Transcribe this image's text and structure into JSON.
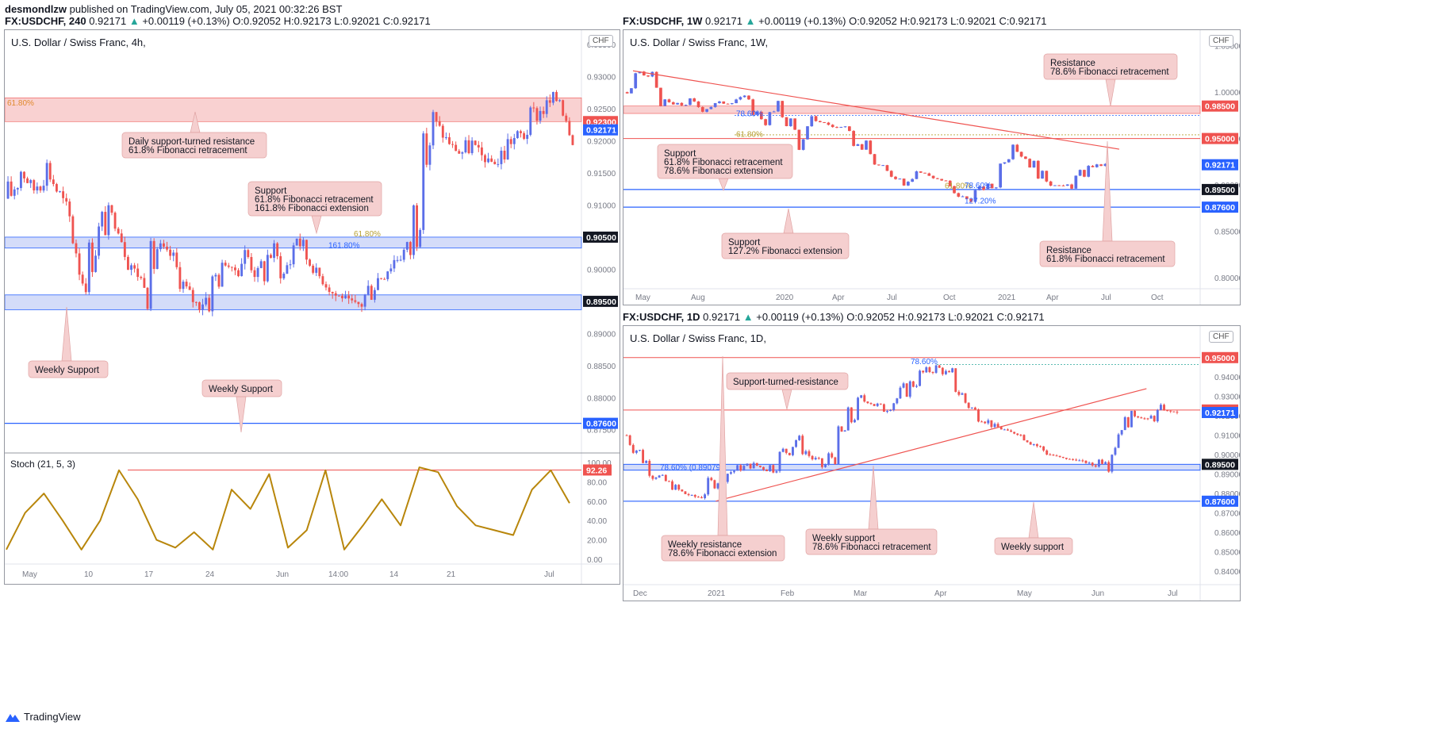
{
  "header": {
    "author": "desmondlzw",
    "published_text": "published on TradingView.com, July 05, 2021 00:32:26 BST"
  },
  "footer": {
    "brand": "TradingView",
    "logo_icon": "tradingview-logo-icon"
  },
  "colors": {
    "up": "#5b6ee8",
    "down": "#ef5350",
    "red_line": "#ef5350",
    "blue_line": "#2962ff",
    "red_zone": "#f8c5c5",
    "blue_zone": "#c9d3f7",
    "stoch": "#b8860b",
    "callout": "#f5cfcf"
  },
  "panels": [
    {
      "id": "h4",
      "info": {
        "symbol": "FX:USDCHF, 240",
        "last": "0.92171",
        "change": "+0.00119 (+0.13%)",
        "open": "O:0.92052",
        "high": "H:0.92173",
        "low": "L:0.92021",
        "close": "C:0.92171"
      },
      "title": "U.S. Dollar / Swiss Franc, 4h,",
      "currency": "CHF",
      "indicator": "Stoch (21, 5, 3)",
      "annotations": [
        {
          "id": "daily-support-turned-resistance",
          "lines": [
            "Daily support-turned resistance",
            "61.8% Fibonacci retracement"
          ]
        },
        {
          "id": "support-61-161",
          "lines": [
            "Support",
            "61.8% Fibonacci retracement",
            "161.8% Fibonacci extension"
          ]
        },
        {
          "id": "weekly-support-1",
          "lines": [
            "Weekly Support"
          ]
        },
        {
          "id": "weekly-support-2",
          "lines": [
            "Weekly Support"
          ]
        }
      ],
      "fib_labels": [
        "61.80%",
        "61.80%",
        "161.80%"
      ],
      "price_ticks": [
        "0.93500",
        "0.93000",
        "0.92500",
        "0.92000",
        "0.91500",
        "0.91000",
        "0.90500",
        "0.90000",
        "0.89500",
        "0.89000",
        "0.88500",
        "0.88000",
        "0.87500"
      ],
      "price_tags": [
        {
          "text": "0.92300",
          "color": "#ef5350"
        },
        {
          "text": "0.92171",
          "color": "#2962ff"
        },
        {
          "text": "0.90500",
          "color": "#131722"
        },
        {
          "text": "0.89500",
          "color": "#131722"
        },
        {
          "text": "0.87600",
          "color": "#2962ff"
        }
      ],
      "stoch_ticks": [
        "100.00",
        "80.00",
        "60.00",
        "40.00",
        "20.00",
        "0.00"
      ],
      "stoch_tag": "92.26",
      "time_ticks": [
        "May",
        "10",
        "17",
        "24",
        "Jun",
        "14:00",
        "14",
        "21",
        "Jul"
      ]
    },
    {
      "id": "w1",
      "info": {
        "symbol": "FX:USDCHF, 1W",
        "last": "0.92171",
        "change": "+0.00119 (+0.13%)",
        "open": "O:0.92052",
        "high": "H:0.92173",
        "low": "L:0.92021",
        "close": "C:0.92171"
      },
      "title": "U.S. Dollar / Swiss Franc, 1W,",
      "currency": "CHF",
      "annotations": [
        {
          "id": "resistance-786",
          "lines": [
            "Resistance",
            "78.6% Fibonacci retracement"
          ]
        },
        {
          "id": "support-618-786",
          "lines": [
            "Support",
            "61.8% Fibonacci retracement",
            "78.6% Fibonacci extension"
          ]
        },
        {
          "id": "support-1272",
          "lines": [
            "Support",
            "127.2% Fibonacci extension"
          ]
        },
        {
          "id": "resistance-618",
          "lines": [
            "Resistance",
            "61.8% Fibonacci retracement"
          ]
        }
      ],
      "fib_labels": [
        "78.60%",
        "61.80%",
        "61.80%",
        "78.60%",
        "127.20%"
      ],
      "price_ticks": [
        "1.05000",
        "1.00000",
        "0.95000",
        "0.90000",
        "0.85000",
        "0.80000"
      ],
      "price_tags": [
        {
          "text": "0.98500",
          "color": "#ef5350"
        },
        {
          "text": "0.95000",
          "color": "#ef5350"
        },
        {
          "text": "0.92171",
          "color": "#2962ff"
        },
        {
          "text": "0.89500",
          "color": "#131722"
        },
        {
          "text": "0.87600",
          "color": "#2962ff"
        }
      ],
      "time_ticks": [
        "May",
        "Aug",
        "2020",
        "Apr",
        "Jul",
        "Oct",
        "2021",
        "Apr",
        "Jul",
        "Oct"
      ]
    },
    {
      "id": "d1",
      "info": {
        "symbol": "FX:USDCHF, 1D",
        "last": "0.92171",
        "change": "+0.00119 (+0.13%)",
        "open": "O:0.92052",
        "high": "H:0.92173",
        "low": "L:0.92021",
        "close": "C:0.92171"
      },
      "title": "U.S. Dollar / Swiss Franc, 1D,",
      "currency": "CHF",
      "annotations": [
        {
          "id": "support-turned-resistance",
          "lines": [
            "Support-turned-resistance"
          ]
        },
        {
          "id": "weekly-resistance",
          "lines": [
            "Weekly resistance",
            "78.6% Fibonacci extension"
          ]
        },
        {
          "id": "weekly-support-786",
          "lines": [
            "Weekly support",
            "78.6% Fibonacci retracement"
          ]
        },
        {
          "id": "weekly-support",
          "lines": [
            "Weekly support"
          ]
        }
      ],
      "fib_labels": [
        "78.60%",
        "78.60% (0.89079)"
      ],
      "price_ticks": [
        "0.94000",
        "0.93000",
        "0.92000",
        "0.91000",
        "0.90000",
        "0.89000",
        "0.88000",
        "0.87000",
        "0.86000",
        "0.85000",
        "0.84000"
      ],
      "price_tags": [
        {
          "text": "0.95000",
          "color": "#ef5350"
        },
        {
          "text": "0.92300",
          "color": "#ef5350"
        },
        {
          "text": "0.92171",
          "color": "#2962ff"
        },
        {
          "text": "0.89500",
          "color": "#131722"
        },
        {
          "text": "0.87600",
          "color": "#2962ff"
        }
      ],
      "time_ticks": [
        "Dec",
        "2021",
        "Feb",
        "Mar",
        "Apr",
        "May",
        "Jun",
        "Jul"
      ]
    }
  ],
  "chart_data": [
    {
      "type": "candlestick",
      "panel": "h4",
      "y_range": [
        0.872,
        0.9365
      ],
      "key_levels": {
        "resistance_zone": [
          0.923,
          0.9267
        ],
        "support_zone_1": [
          0.9033,
          0.905
        ],
        "support_zone_2": [
          0.8937,
          0.896
        ],
        "weekly_support": 0.876
      },
      "path": [
        0.911,
        0.9155,
        0.9125,
        0.9165,
        0.912,
        0.9075,
        0.899,
        0.9045,
        0.909,
        0.906,
        0.9,
        0.8975,
        0.904,
        0.902,
        0.8975,
        0.8945,
        0.896,
        0.901,
        0.9,
        0.9025,
        0.8985,
        0.9035,
        0.899,
        0.9055,
        0.901,
        0.8985,
        0.896,
        0.8955,
        0.8945,
        0.8975,
        0.9,
        0.902,
        0.9035,
        0.916,
        0.923,
        0.92,
        0.918,
        0.9195,
        0.917,
        0.9165,
        0.92,
        0.921,
        0.924,
        0.9255,
        0.927,
        0.9217
      ],
      "stoch": [
        10,
        48,
        68,
        40,
        10,
        40,
        92,
        62,
        20,
        12,
        28,
        10,
        72,
        52,
        88,
        12,
        30,
        92,
        10,
        35,
        62,
        35,
        95,
        90,
        55,
        35,
        30,
        25,
        72,
        92,
        58
      ],
      "stoch_level": 92.26
    },
    {
      "type": "candlestick",
      "panel": "w1",
      "y_range": [
        0.788,
        1.06
      ],
      "key_levels": {
        "resistance_zone": [
          0.977,
          0.985
        ],
        "resistance": 0.95,
        "support": 0.895,
        "support_2": 0.876
      },
      "trendline": [
        [
          0,
          1.023
        ],
        [
          1.0,
          0.9385
        ]
      ],
      "path": [
        1.0,
        1.02,
        1.015,
        0.99,
        0.985,
        0.99,
        0.982,
        0.987,
        0.99,
        0.995,
        0.98,
        0.97,
        0.982,
        0.965,
        0.94,
        0.97,
        0.965,
        0.96,
        0.945,
        0.938,
        0.92,
        0.91,
        0.905,
        0.915,
        0.91,
        0.905,
        0.89,
        0.885,
        0.895,
        0.9,
        0.93,
        0.94,
        0.925,
        0.91,
        0.9,
        0.898,
        0.91,
        0.92,
        0.9217
      ]
    },
    {
      "type": "candlestick",
      "panel": "d1",
      "y_range": [
        0.833,
        0.954
      ],
      "key_levels": {
        "resistance": 0.95,
        "support_turned_resistance": 0.923,
        "support_zone": [
          0.892,
          0.895
        ],
        "weekly_support": 0.876
      },
      "trendline": [
        [
          0.1598,
          0.876
        ],
        [
          0.9069,
          0.934
        ]
      ],
      "path": [
        0.91,
        0.9,
        0.89,
        0.885,
        0.88,
        0.878,
        0.885,
        0.89,
        0.893,
        0.895,
        0.892,
        0.9,
        0.908,
        0.899,
        0.893,
        0.905,
        0.92,
        0.93,
        0.923,
        0.928,
        0.935,
        0.942,
        0.945,
        0.94,
        0.927,
        0.92,
        0.915,
        0.912,
        0.91,
        0.905,
        0.9,
        0.898,
        0.897,
        0.895,
        0.899,
        0.915,
        0.92,
        0.918,
        0.923,
        0.9217
      ]
    }
  ]
}
